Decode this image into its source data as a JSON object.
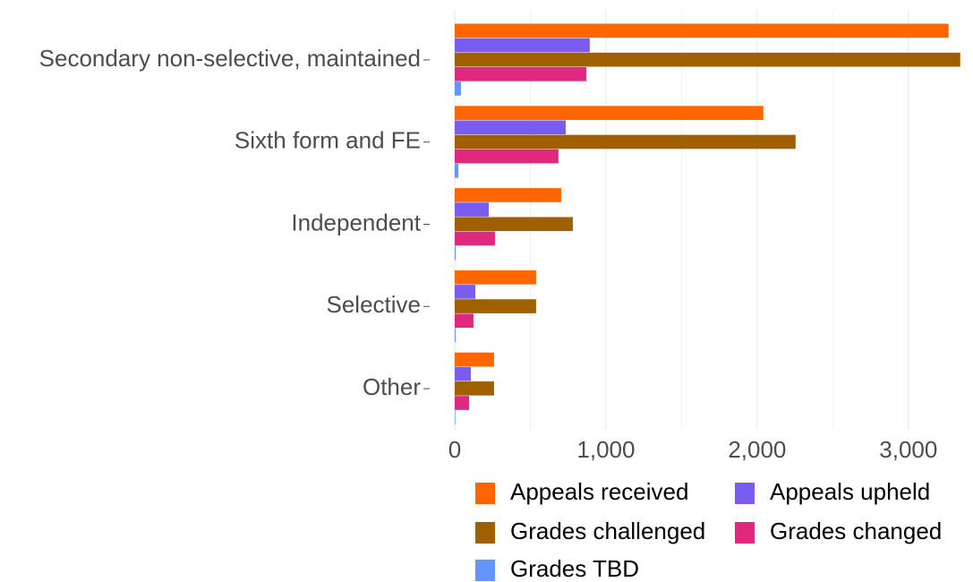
{
  "chart_data": {
    "type": "barh",
    "categories": [
      "Secondary non-selective, maintained",
      "Sixth form and FE",
      "Independent",
      "Selective",
      "Other"
    ],
    "series": [
      {
        "name": "Appeals received",
        "color": "#ff6600",
        "values": [
          3266,
          2041,
          704,
          538,
          260
        ]
      },
      {
        "name": "Appeals upheld",
        "color": "#7b5cf0",
        "values": [
          893,
          734,
          225,
          136,
          107
        ]
      },
      {
        "name": "Grades challenged",
        "color": "#a06000",
        "values": [
          3343,
          2254,
          781,
          538,
          260
        ]
      },
      {
        "name": "Grades changed",
        "color": "#e0287e",
        "values": [
          870,
          686,
          266,
          124,
          95
        ]
      },
      {
        "name": "Grades TBD",
        "color": "#6495ff",
        "values": [
          41,
          24,
          6,
          6,
          4
        ]
      }
    ],
    "xlim": [
      0,
      3380
    ],
    "xticks": [
      0,
      {
        "value": 1000,
        "label": "1,000"
      },
      {
        "value": 2000,
        "label": "2,000"
      },
      {
        "value": 3000,
        "label": "3,000"
      }
    ],
    "xminorticks": [
      500,
      1500,
      2500
    ],
    "grid": true
  }
}
